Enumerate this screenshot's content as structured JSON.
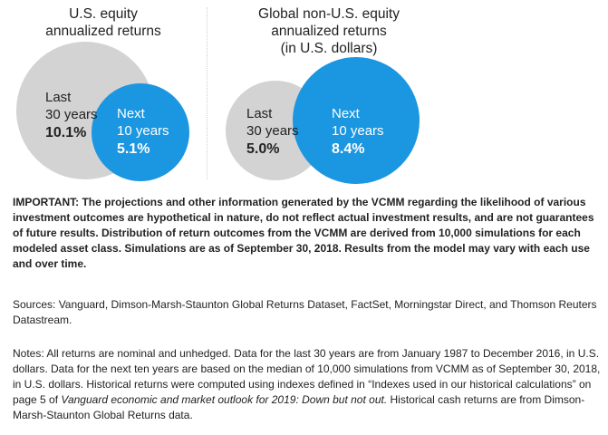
{
  "chart_data": [
    {
      "type": "bubble",
      "title_lines": [
        "U.S. equity",
        "annualized returns"
      ],
      "series": [
        {
          "name": "Last 30 years",
          "label_lines": [
            "Last",
            "30 years"
          ],
          "value": 10.1,
          "value_text": "10.1%",
          "color": "#d3d3d3",
          "text_color": "#222222"
        },
        {
          "name": "Next 10 years",
          "label_lines": [
            "Next",
            "10 years"
          ],
          "value": 5.1,
          "value_text": "5.1%",
          "color": "#1b96e0",
          "text_color": "#ffffff"
        }
      ]
    },
    {
      "type": "bubble",
      "title_lines": [
        "Global non-U.S. equity",
        "annualized returns",
        "(in U.S. dollars)"
      ],
      "series": [
        {
          "name": "Last 30 years",
          "label_lines": [
            "Last",
            "30 years"
          ],
          "value": 5.0,
          "value_text": "5.0%",
          "color": "#d3d3d3",
          "text_color": "#222222"
        },
        {
          "name": "Next 10 years",
          "label_lines": [
            "Next",
            "10 years"
          ],
          "value": 8.4,
          "value_text": "8.4%",
          "color": "#1b96e0",
          "text_color": "#ffffff"
        }
      ]
    }
  ],
  "important": {
    "label": "IMPORTANT:",
    "text": " The projections and other information generated by the VCMM regarding the likelihood of various investment outcomes are hypothetical in nature, do not reflect actual investment results, and are not guarantees of future results. Distribution of return outcomes from the VCMM are derived from 10,000 simulations for each modeled asset class. Simulations are as of September 30, 2018. Results from the model may vary with each use and over time."
  },
  "sources": "Sources: Vanguard, Dimson-Marsh-Staunton Global Returns Dataset, FactSet, Morningstar Direct, and Thomson Reuters Datastream.",
  "notes": {
    "part1": "Notes: All returns are nominal and unhedged. Data for the last 30 years are from January 1987 to December 2016, in U.S. dollars. Data for the next ten years are based on the median of 10,000 simulations from VCMM as of September 30, 2018, in U.S. dollars. Historical returns were computed using indexes defined in “Indexes used in our historical calculations” on page 5 of ",
    "italic": "Vanguard economic and market outlook for 2019: Down but not out.",
    "part2": " Historical cash returns are from Dimson-Marsh-Staunton Global Returns data."
  }
}
